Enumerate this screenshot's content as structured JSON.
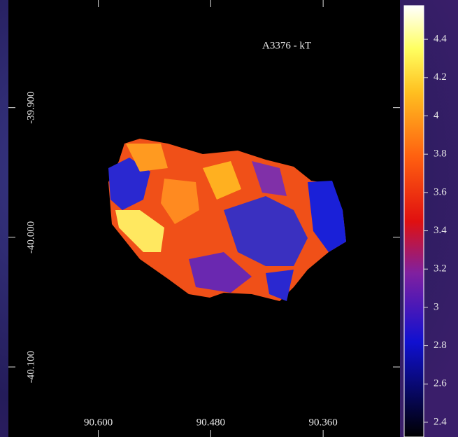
{
  "chart_data": {
    "type": "image-map",
    "title": "A3376 - kT",
    "xlim": [
      90.696,
      90.278
    ],
    "xticks": [
      {
        "value": 90.6,
        "label": "90.600"
      },
      {
        "value": 90.48,
        "label": "90.480"
      },
      {
        "value": 90.36,
        "label": "90.360"
      }
    ],
    "ylim": [
      -40.154,
      -39.817
    ],
    "yticks": [
      {
        "value": -39.9,
        "label": "-39.900"
      },
      {
        "value": -40.0,
        "label": "-40.000"
      },
      {
        "value": -40.1,
        "label": "-40.100"
      }
    ],
    "clim": [
      2.323,
      4.576
    ],
    "cticks": [
      2.4,
      2.6,
      2.8,
      3,
      3.2,
      3.4,
      3.6,
      3.8,
      4,
      4.2,
      4.4
    ]
  }
}
